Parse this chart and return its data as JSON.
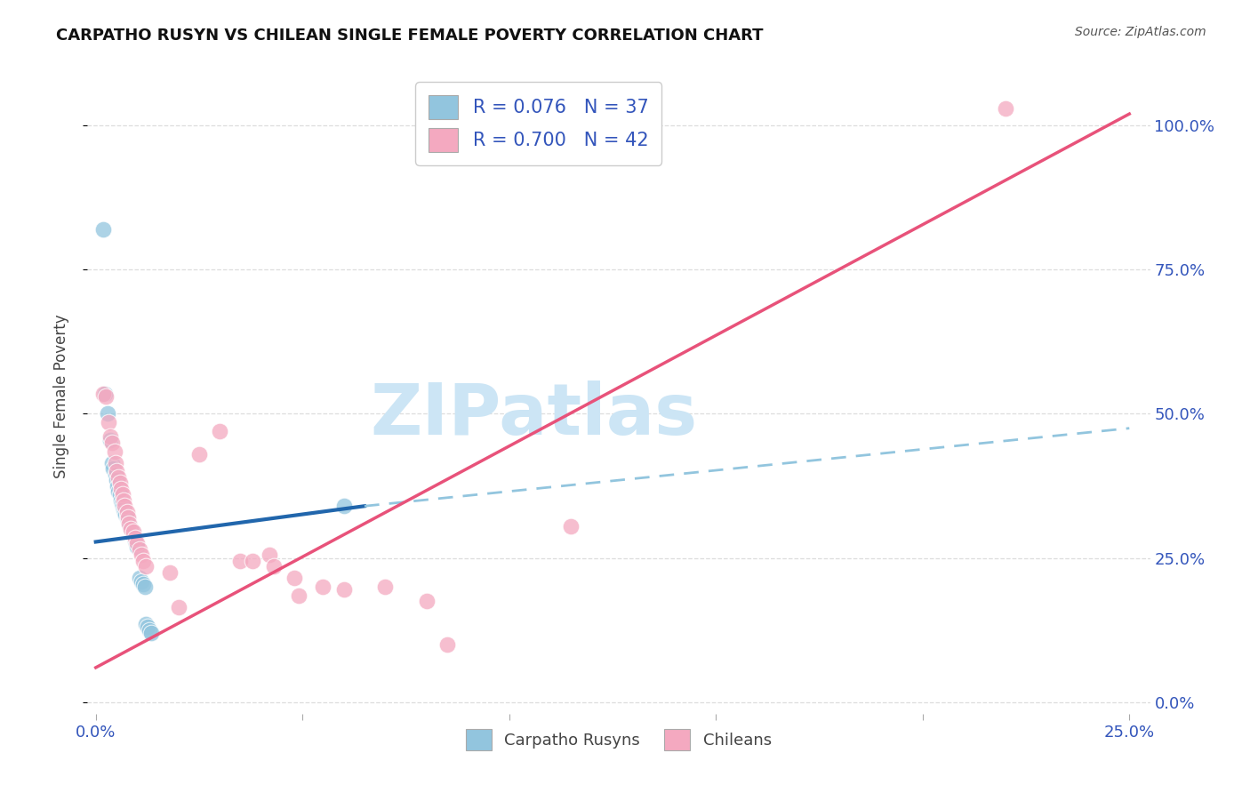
{
  "title": "CARPATHO RUSYN VS CHILEAN SINGLE FEMALE POVERTY CORRELATION CHART",
  "source": "Source: ZipAtlas.com",
  "ylabel_label": "Single Female Poverty",
  "x_min": -0.002,
  "x_max": 0.255,
  "y_min": -0.02,
  "y_max": 1.08,
  "x_ticks": [
    0.0,
    0.05,
    0.1,
    0.15,
    0.2,
    0.25
  ],
  "x_tick_labels": [
    "0.0%",
    "",
    "",
    "",
    "",
    "25.0%"
  ],
  "y_ticks": [
    0.0,
    0.25,
    0.5,
    0.75,
    1.0
  ],
  "y_tick_labels_right": [
    "0.0%",
    "25.0%",
    "50.0%",
    "75.0%",
    "100.0%"
  ],
  "legend_r1": "R = 0.076",
  "legend_n1": "N = 37",
  "legend_r2": "R = 0.700",
  "legend_n2": "N = 42",
  "color_blue": "#92c5de",
  "color_pink": "#f4a9c0",
  "color_blue_dark": "#2166ac",
  "color_pink_dark": "#e8527a",
  "color_blue_dashed": "#92c5de",
  "watermark_text": "ZIPatlas",
  "watermark_color": "#cce5f5",
  "background_color": "#ffffff",
  "grid_color": "#dddddd",
  "tick_color": "#3355bb",
  "scatter_blue": [
    [
      0.0018,
      0.82
    ],
    [
      0.0022,
      0.535
    ],
    [
      0.0028,
      0.5
    ],
    [
      0.0035,
      0.455
    ],
    [
      0.004,
      0.415
    ],
    [
      0.0042,
      0.405
    ],
    [
      0.0048,
      0.395
    ],
    [
      0.005,
      0.385
    ],
    [
      0.0052,
      0.375
    ],
    [
      0.0055,
      0.365
    ],
    [
      0.0058,
      0.36
    ],
    [
      0.006,
      0.35
    ],
    [
      0.0062,
      0.345
    ],
    [
      0.0065,
      0.34
    ],
    [
      0.0068,
      0.335
    ],
    [
      0.007,
      0.33
    ],
    [
      0.0072,
      0.325
    ],
    [
      0.0075,
      0.32
    ],
    [
      0.0078,
      0.315
    ],
    [
      0.008,
      0.31
    ],
    [
      0.0082,
      0.305
    ],
    [
      0.0085,
      0.3
    ],
    [
      0.0088,
      0.295
    ],
    [
      0.009,
      0.29
    ],
    [
      0.0092,
      0.285
    ],
    [
      0.0095,
      0.28
    ],
    [
      0.0098,
      0.275
    ],
    [
      0.01,
      0.27
    ],
    [
      0.0105,
      0.215
    ],
    [
      0.011,
      0.21
    ],
    [
      0.0115,
      0.205
    ],
    [
      0.0118,
      0.2
    ],
    [
      0.012,
      0.135
    ],
    [
      0.0125,
      0.13
    ],
    [
      0.013,
      0.125
    ],
    [
      0.0135,
      0.12
    ],
    [
      0.06,
      0.34
    ]
  ],
  "scatter_pink": [
    [
      0.0018,
      0.535
    ],
    [
      0.0025,
      0.53
    ],
    [
      0.003,
      0.485
    ],
    [
      0.0035,
      0.46
    ],
    [
      0.004,
      0.45
    ],
    [
      0.0045,
      0.435
    ],
    [
      0.0048,
      0.415
    ],
    [
      0.005,
      0.4
    ],
    [
      0.0055,
      0.39
    ],
    [
      0.0058,
      0.38
    ],
    [
      0.006,
      0.37
    ],
    [
      0.0065,
      0.36
    ],
    [
      0.0068,
      0.35
    ],
    [
      0.007,
      0.34
    ],
    [
      0.0075,
      0.33
    ],
    [
      0.0078,
      0.32
    ],
    [
      0.008,
      0.31
    ],
    [
      0.0085,
      0.3
    ],
    [
      0.009,
      0.295
    ],
    [
      0.0095,
      0.285
    ],
    [
      0.01,
      0.275
    ],
    [
      0.0105,
      0.265
    ],
    [
      0.011,
      0.255
    ],
    [
      0.0115,
      0.245
    ],
    [
      0.012,
      0.235
    ],
    [
      0.018,
      0.225
    ],
    [
      0.02,
      0.165
    ],
    [
      0.025,
      0.43
    ],
    [
      0.03,
      0.47
    ],
    [
      0.035,
      0.245
    ],
    [
      0.038,
      0.245
    ],
    [
      0.042,
      0.255
    ],
    [
      0.043,
      0.235
    ],
    [
      0.048,
      0.215
    ],
    [
      0.049,
      0.185
    ],
    [
      0.055,
      0.2
    ],
    [
      0.06,
      0.195
    ],
    [
      0.07,
      0.2
    ],
    [
      0.08,
      0.175
    ],
    [
      0.085,
      0.1
    ],
    [
      0.115,
      0.305
    ],
    [
      0.22,
      1.03
    ]
  ],
  "blue_line_solid": [
    [
      0.0,
      0.278
    ],
    [
      0.065,
      0.34
    ]
  ],
  "blue_line_dashed": [
    [
      0.065,
      0.34
    ],
    [
      0.25,
      0.475
    ]
  ],
  "pink_line": [
    [
      0.0,
      0.06
    ],
    [
      0.25,
      1.02
    ]
  ]
}
